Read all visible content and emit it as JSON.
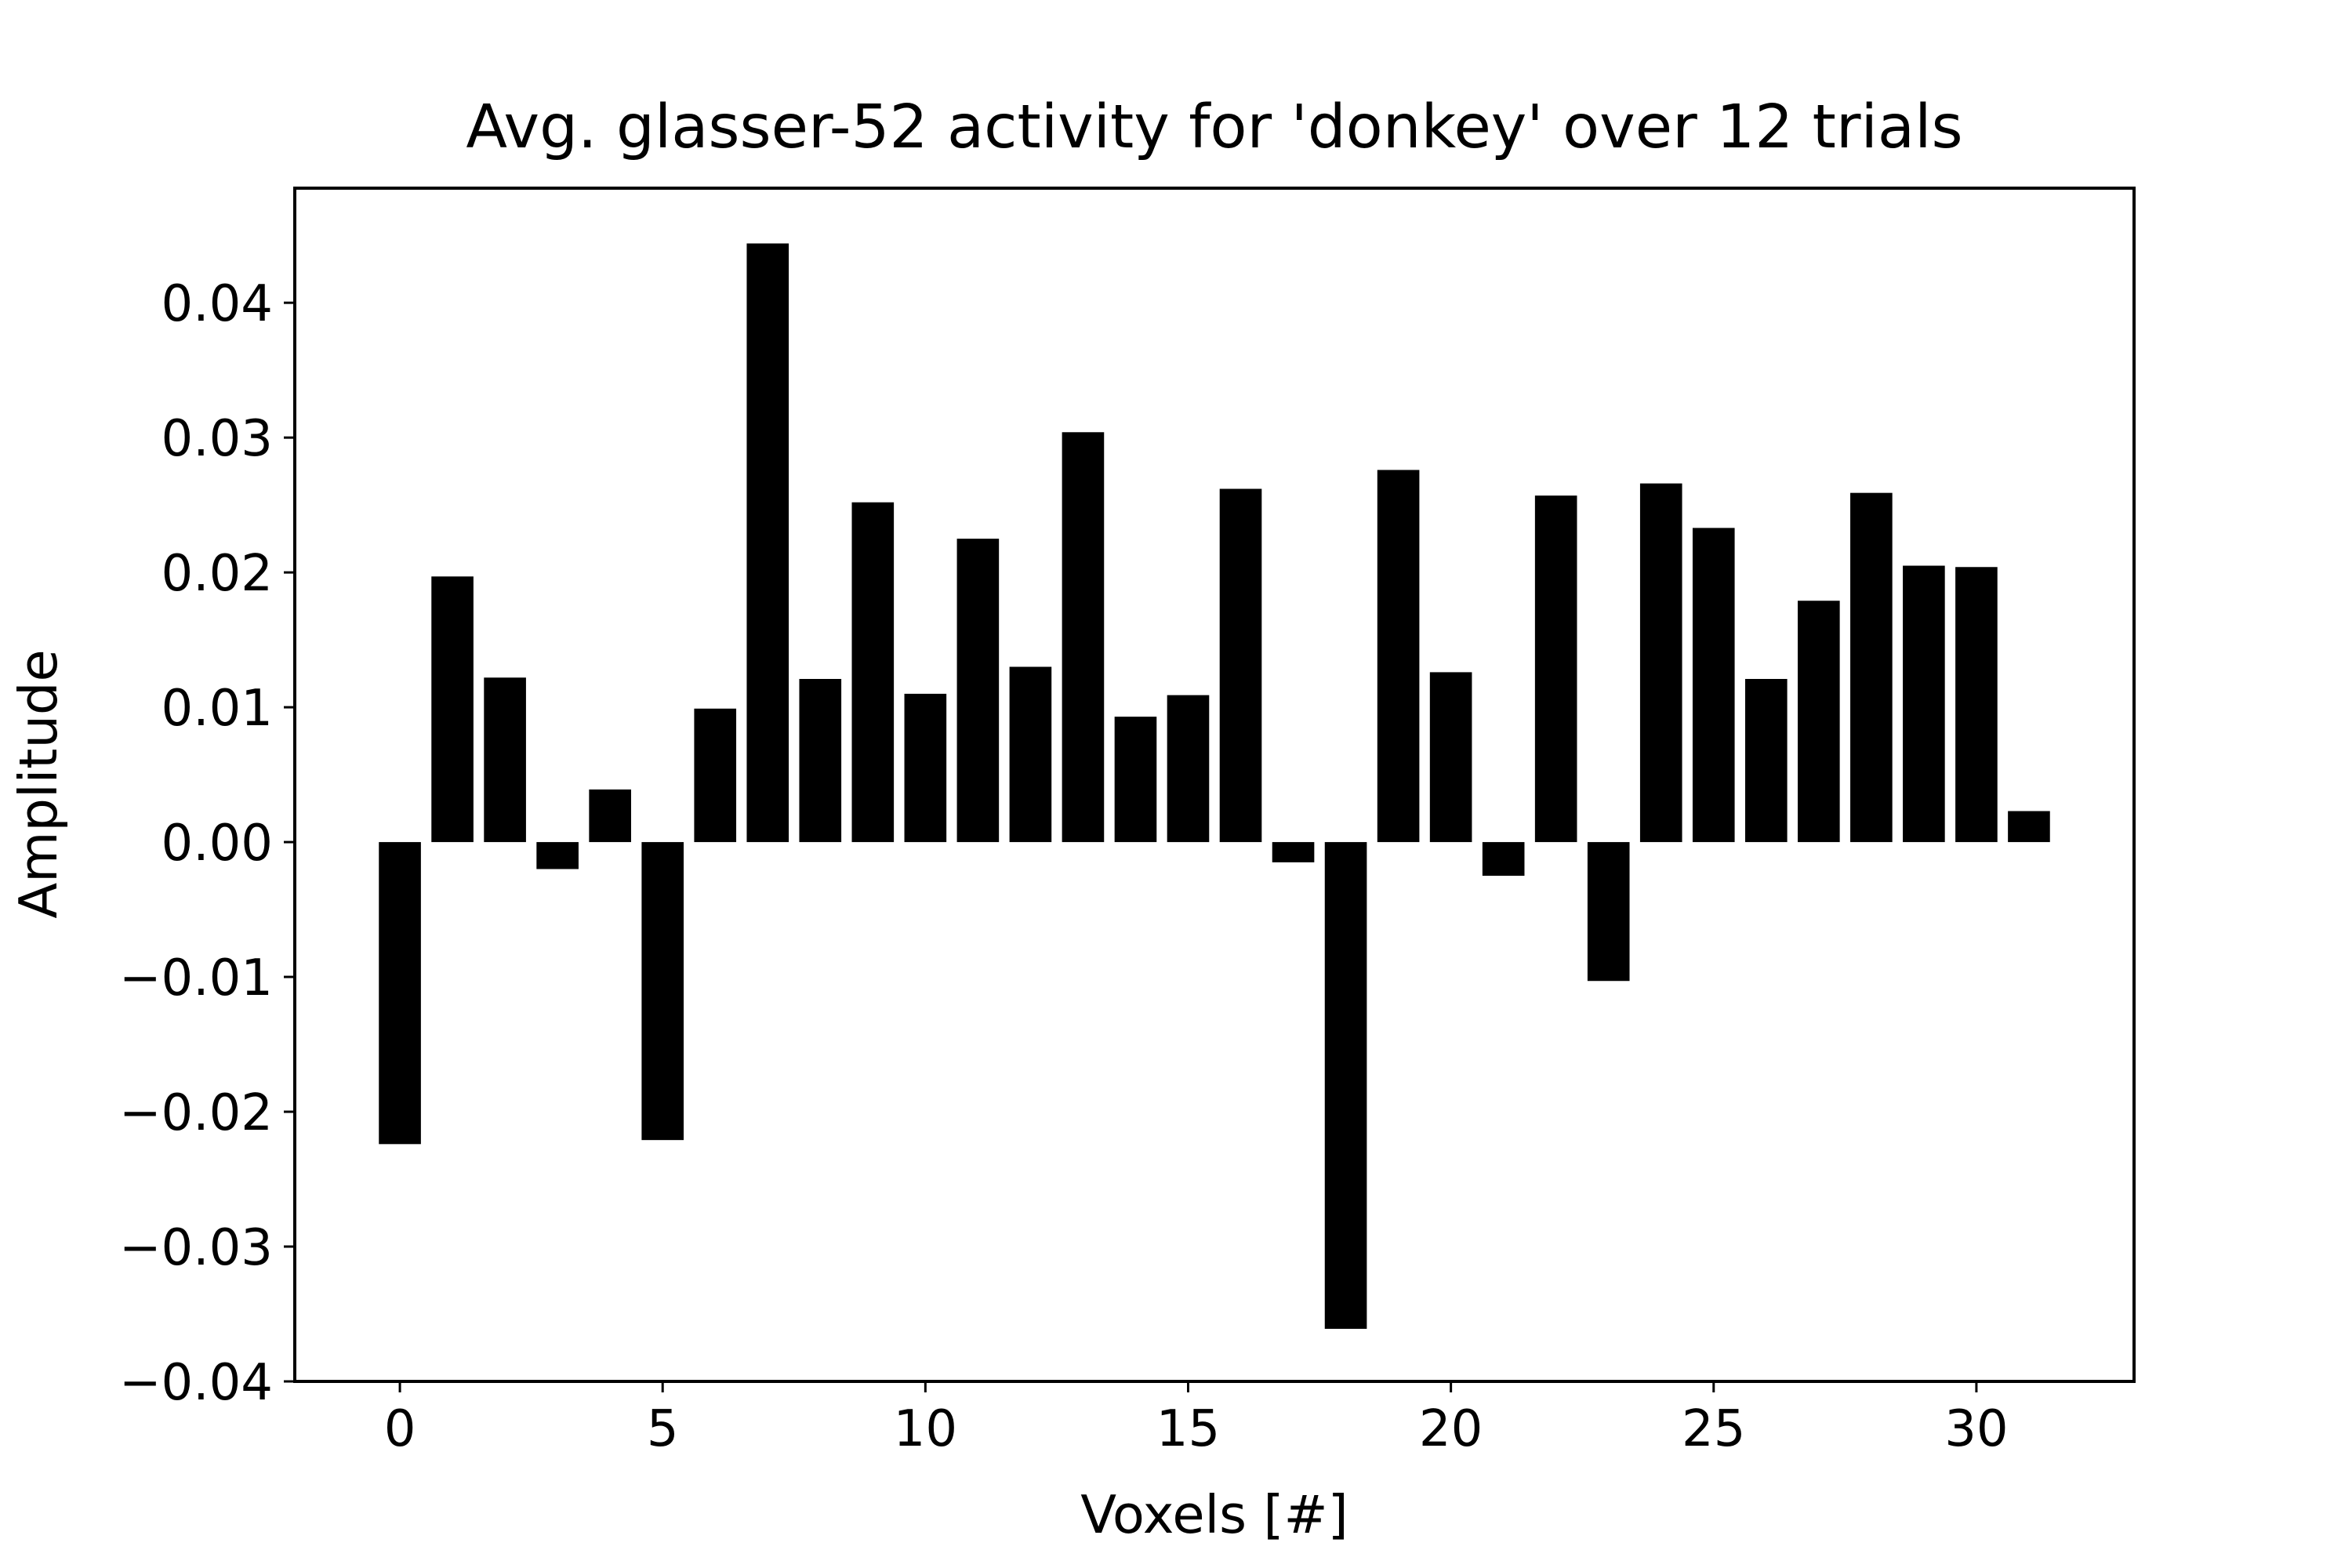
{
  "chart_data": {
    "type": "bar",
    "title": "Avg. glasser-52 activity for 'donkey' over 12 trials",
    "xlabel": "Voxels [#]",
    "ylabel": "Amplitude",
    "x": [
      0,
      1,
      2,
      3,
      4,
      5,
      6,
      7,
      8,
      9,
      10,
      11,
      12,
      13,
      14,
      15,
      16,
      17,
      18,
      19,
      20,
      21,
      22,
      23,
      24,
      25,
      26,
      27,
      28,
      29,
      30,
      31
    ],
    "values": [
      -0.0224,
      0.0197,
      0.0122,
      -0.002,
      0.0039,
      -0.0221,
      0.0099,
      0.0444,
      0.0121,
      0.0252,
      0.011,
      0.0225,
      0.013,
      0.0304,
      0.0093,
      0.0109,
      0.0262,
      -0.0015,
      -0.0361,
      0.0276,
      0.0126,
      -0.0025,
      0.0257,
      -0.0103,
      0.0266,
      0.0233,
      0.0121,
      0.0179,
      0.0259,
      0.0205,
      0.0204,
      0.0023
    ],
    "xlim": [
      -2,
      33
    ],
    "ylim": [
      -0.04,
      0.0485
    ],
    "xticks": [
      0,
      5,
      10,
      15,
      20,
      25,
      30
    ],
    "xtick_labels": [
      "0",
      "5",
      "10",
      "15",
      "20",
      "25",
      "30"
    ],
    "yticks": [
      -0.04,
      -0.03,
      -0.02,
      -0.01,
      0.0,
      0.01,
      0.02,
      0.03,
      0.04
    ],
    "ytick_labels": [
      "−0.04",
      "−0.03",
      "−0.02",
      "−0.01",
      "0.00",
      "0.01",
      "0.02",
      "0.03",
      "0.04"
    ],
    "bar_color": "#000000",
    "grid": false,
    "legend": null
  }
}
